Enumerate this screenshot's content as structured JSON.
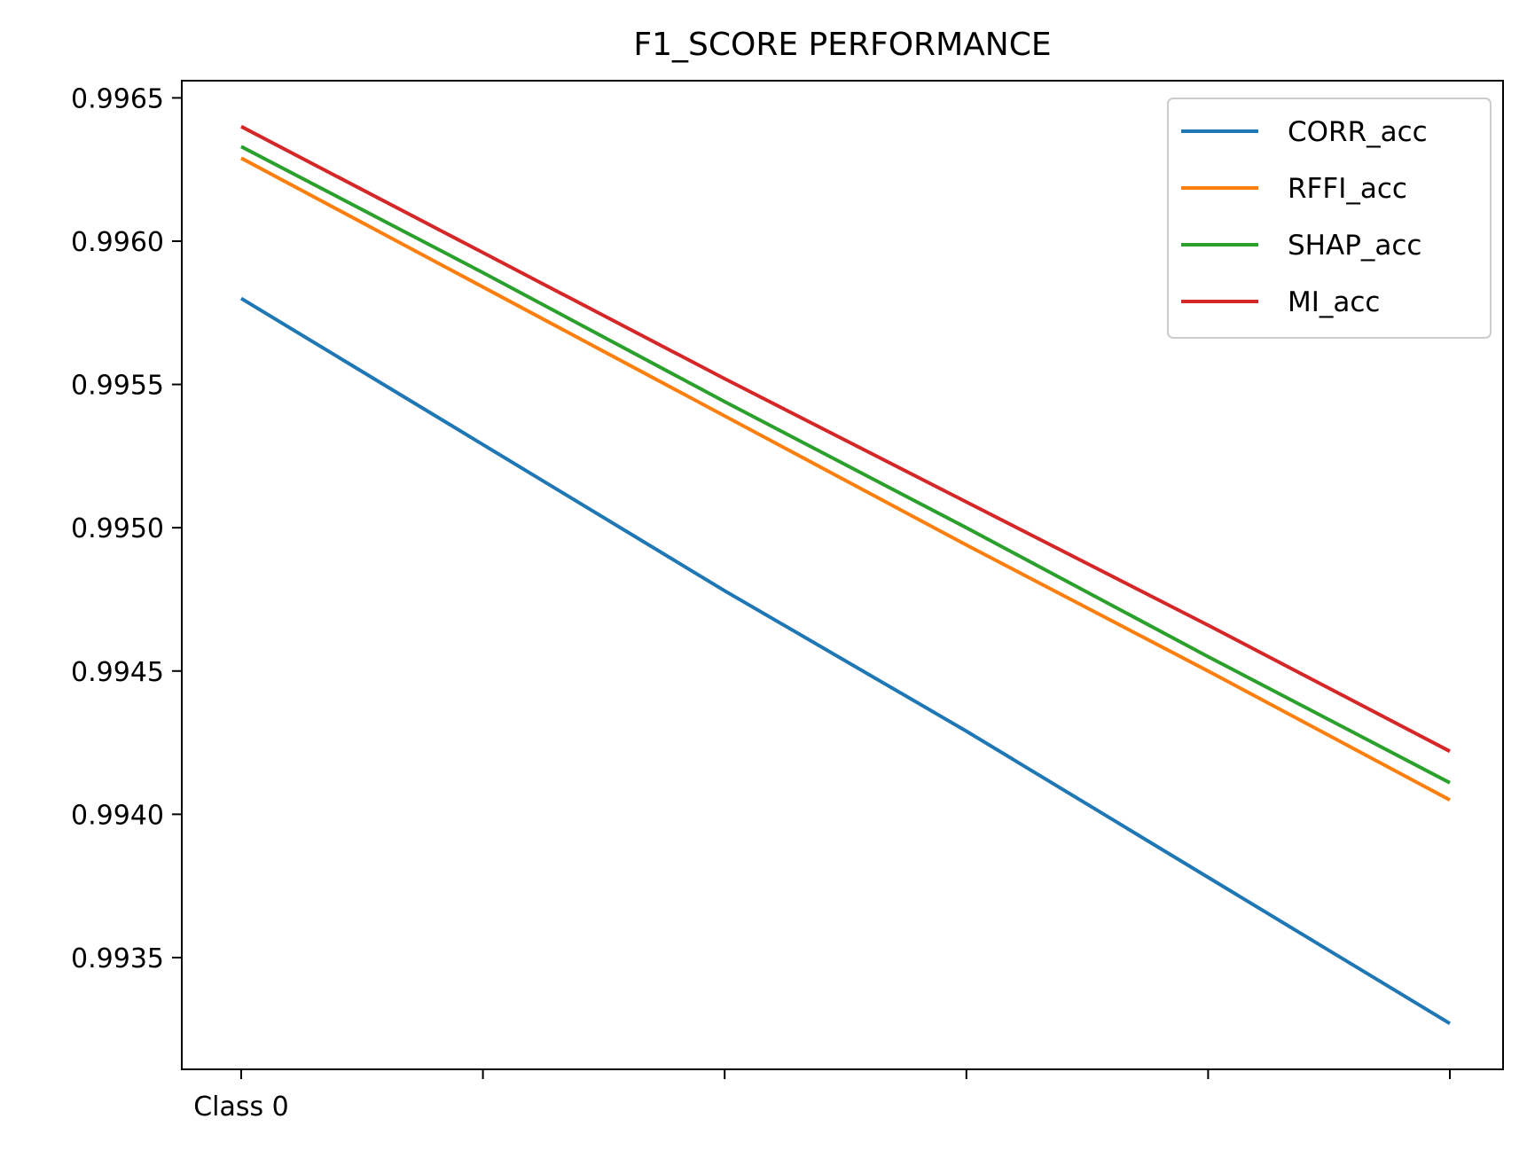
{
  "chart_data": {
    "type": "line",
    "title": "F1_SCORE PERFORMANCE",
    "xlabel": "",
    "ylabel": "",
    "x_tick_labels": [
      "Class 0",
      "",
      "",
      "",
      "",
      ""
    ],
    "x": [
      0,
      1,
      2,
      3,
      4,
      5
    ],
    "ylim": [
      0.99311,
      0.99656
    ],
    "y_ticks": [
      0.9935,
      0.994,
      0.9945,
      0.995,
      0.9955,
      0.996,
      0.9965
    ],
    "y_tick_labels": [
      "0.9935",
      "0.9940",
      "0.9945",
      "0.9950",
      "0.9955",
      "0.9960",
      "0.9965"
    ],
    "grid": false,
    "legend_position": "top-right",
    "series": [
      {
        "name": "CORR_acc",
        "color": "#1f77b4",
        "values": [
          0.9958,
          0.99529,
          0.99478,
          0.99429,
          0.99378,
          0.99327
        ]
      },
      {
        "name": "RFFI_acc",
        "color": "#ff7f0e",
        "values": [
          0.99629,
          0.99584,
          0.99539,
          0.99494,
          0.9945,
          0.99405
        ]
      },
      {
        "name": "SHAP_acc",
        "color": "#2ca02c",
        "values": [
          0.99633,
          0.99589,
          0.99544,
          0.995,
          0.99455,
          0.99411
        ]
      },
      {
        "name": "MI_acc",
        "color": "#d62728",
        "values": [
          0.9964,
          0.99596,
          0.99552,
          0.99509,
          0.99466,
          0.99422
        ]
      }
    ]
  }
}
